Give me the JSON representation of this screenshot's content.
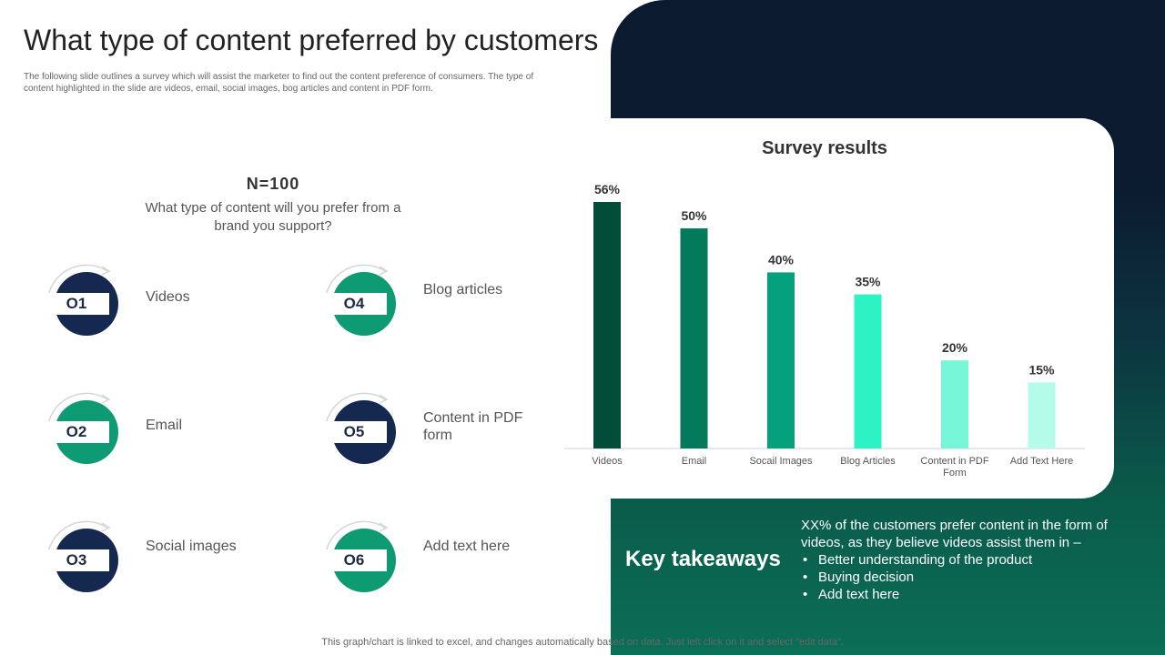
{
  "slide": {
    "title": "What type of content preferred by customers",
    "subtitle": "The following slide outlines a survey which will assist the marketer to find out the content preference of consumers. The type of content highlighted in the slide are videos, email,  social images,  bog articles and content in PDF  form.",
    "footnote": "This graph/chart is linked to excel,  and changes automatically based on data. Just left click on it and select “edit data”."
  },
  "survey": {
    "n_label": "N=100",
    "question": "What type of content will you prefer from a brand you support?",
    "options": [
      {
        "number": "O1",
        "label": "Videos",
        "color": "#142850"
      },
      {
        "number": "O2",
        "label": "Email",
        "color": "#0e9a73"
      },
      {
        "number": "O3",
        "label": "Social images",
        "color": "#142850"
      },
      {
        "number": "O4",
        "label": "Blog articles",
        "color": "#0e9a73"
      },
      {
        "number": "O5",
        "label": "Content in PDF form",
        "color": "#142850"
      },
      {
        "number": "O6",
        "label": "Add text here",
        "color": "#0e9a73"
      }
    ]
  },
  "chart_data": {
    "type": "bar",
    "title": "Survey results",
    "categories": [
      "Videos",
      "Email",
      "Socail Images",
      "Blog Articles",
      "Content in PDF Form",
      "Add Text Here"
    ],
    "values": [
      56,
      50,
      40,
      35,
      20,
      15
    ],
    "data_labels": [
      "56%",
      "50%",
      "40%",
      "35%",
      "20%",
      "15%"
    ],
    "colors": [
      "#024d3a",
      "#027a5b",
      "#05a07c",
      "#2cf2c4",
      "#77f5d7",
      "#b5fbea"
    ],
    "ylim": [
      0,
      56
    ],
    "grid": false,
    "legend": "none"
  },
  "takeaways": {
    "title": "Key takeaways",
    "intro": "XX% of the customers prefer content in the form of videos, as they believe videos assist them in –",
    "bullets": [
      "Better understanding of the product",
      "Buying decision",
      "Add text here"
    ]
  }
}
